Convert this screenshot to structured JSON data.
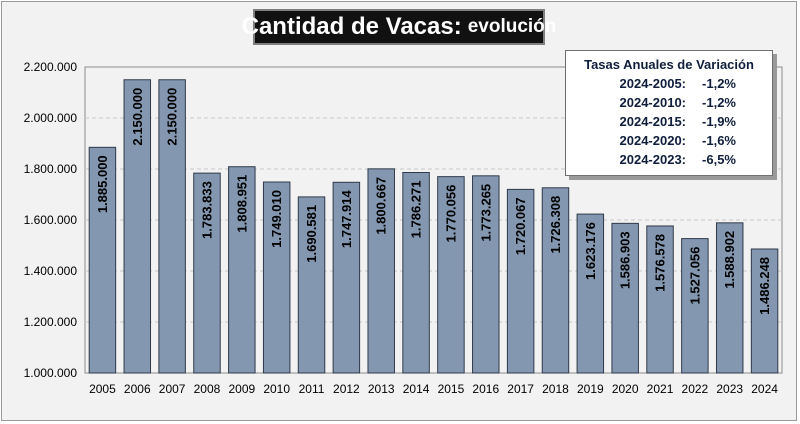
{
  "title": {
    "main": "Cantidad de Vacas:",
    "sub": "evolución"
  },
  "legend": {
    "title": "Tasas Anuales de Variación",
    "rates": [
      {
        "label": "2024-2005:",
        "value": "-1,2%"
      },
      {
        "label": "2024-2010:",
        "value": "-1,2%"
      },
      {
        "label": "2024-2015:",
        "value": "-1,9%"
      },
      {
        "label": "2024-2020:",
        "value": "-1,6%"
      },
      {
        "label": "2024-2023:",
        "value": "-6,5%"
      }
    ]
  },
  "colors": {
    "bar": "#8497b0",
    "bar_stroke": "#2f3a4a",
    "plot_bg": "#f2f2f2",
    "grid": "#c8c8c8"
  },
  "chart_data": {
    "type": "bar",
    "categories": [
      "2005",
      "2006",
      "2007",
      "2008",
      "2009",
      "2010",
      "2011",
      "2012",
      "2013",
      "2014",
      "2015",
      "2016",
      "2017",
      "2018",
      "2019",
      "2020",
      "2021",
      "2022",
      "2023",
      "2024"
    ],
    "values": [
      1885000,
      2150000,
      2150000,
      1783833,
      1808951,
      1749010,
      1690581,
      1747914,
      1800667,
      1786271,
      1770056,
      1773265,
      1720067,
      1726308,
      1623176,
      1586903,
      1576578,
      1527056,
      1588902,
      1486248
    ],
    "data_labels": [
      "1.885.000",
      "2.150.000",
      "2.150.000",
      "1.783.833",
      "1.808.951",
      "1.749.010",
      "1.690.581",
      "1.747.914",
      "1.800.667",
      "1.786.271",
      "1.770.056",
      "1.773.265",
      "1.720.067",
      "1.726.308",
      "1.623.176",
      "1.586.903",
      "1.576.578",
      "1.527.056",
      "1.588.902",
      "1.486.248"
    ],
    "y_ticks": [
      1000000,
      1200000,
      1400000,
      1600000,
      1800000,
      2000000,
      2200000
    ],
    "y_tick_labels": [
      "1.000.000",
      "1.200.000",
      "1.400.000",
      "1.600.000",
      "1.800.000",
      "2.000.000",
      "2.200.000"
    ],
    "ylim": [
      1000000,
      2200000
    ],
    "grid": true,
    "legend_placement": "top-right"
  }
}
